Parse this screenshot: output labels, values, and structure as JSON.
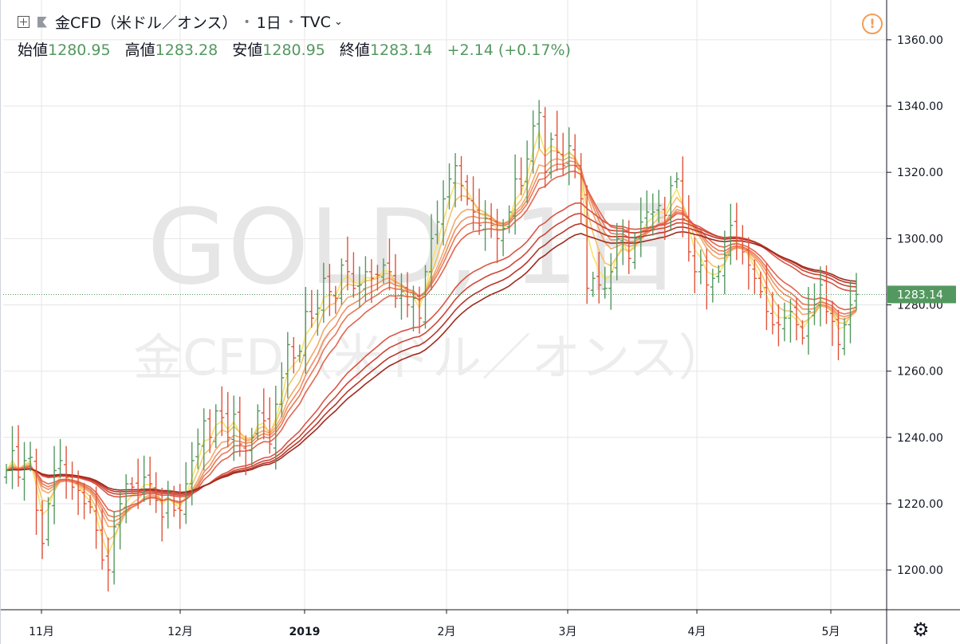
{
  "header": {
    "symbol": "金CFD（米ドル／オンス）",
    "interval": "1日",
    "exchange": "TVC",
    "open_label": "始値",
    "open": "1280.95",
    "high_label": "高値",
    "high": "1283.28",
    "low_label": "安値",
    "low": "1280.95",
    "close_label": "終値",
    "close": "1283.14",
    "change": "+2.14 (+0.17%)"
  },
  "watermark": {
    "line1": "GOLD, 1日",
    "line2": "金CFD（米ドル／オンス）"
  },
  "icons": {
    "expand": "plus-square-icon",
    "flag": "flag-icon",
    "warning": "warning-icon",
    "settings": "gear-icon"
  },
  "colors": {
    "up": "#53985f",
    "down": "#e0533a",
    "grid": "#e6e6e6",
    "price_line": "#53985f",
    "ribbon": [
      "#f7e36a",
      "#f5c36c",
      "#f2a86a",
      "#ee9062",
      "#e9785a",
      "#e36550",
      "#d95444",
      "#cc4637",
      "#b8362a",
      "#9e2a1e"
    ]
  },
  "chart_data": {
    "type": "candlestick",
    "y_ticks": [
      "1360.00",
      "1340.00",
      "1320.00",
      "1300.00",
      "1280.00",
      "1260.00",
      "1240.00",
      "1220.00",
      "1200.00"
    ],
    "ylim": [
      1188,
      1372
    ],
    "x_ticks": [
      "11月",
      "12月",
      "2019",
      "2月",
      "3月",
      "4月",
      "5月"
    ],
    "last_price_label": "1283.14",
    "last_price": 1283.14,
    "closes": [
      1230,
      1236,
      1228,
      1233,
      1234,
      1218,
      1208,
      1220,
      1230,
      1233,
      1228,
      1225,
      1224,
      1220,
      1219,
      1212,
      1203,
      1200,
      1213,
      1220,
      1226,
      1225,
      1224,
      1228,
      1226,
      1221,
      1216,
      1224,
      1218,
      1218,
      1226,
      1233,
      1238,
      1245,
      1240,
      1248,
      1246,
      1240,
      1247,
      1238,
      1236,
      1240,
      1248,
      1245,
      1238,
      1250,
      1258,
      1268,
      1264,
      1266,
      1278,
      1276,
      1279,
      1288,
      1284,
      1282,
      1292,
      1290,
      1285,
      1286,
      1290,
      1288,
      1289,
      1292,
      1290,
      1282,
      1284,
      1280,
      1282,
      1276,
      1290,
      1300,
      1305,
      1312,
      1318,
      1322,
      1316,
      1312,
      1308,
      1304,
      1306,
      1304,
      1300,
      1303,
      1308,
      1318,
      1316,
      1324,
      1334,
      1338,
      1320,
      1330,
      1326,
      1322,
      1328,
      1322,
      1312,
      1285,
      1288,
      1286,
      1285,
      1290,
      1300,
      1302,
      1294,
      1300,
      1305,
      1308,
      1308,
      1310,
      1307,
      1316,
      1318,
      1306,
      1296,
      1290,
      1292,
      1286,
      1288,
      1290,
      1295,
      1304,
      1300,
      1296,
      1292,
      1288,
      1284,
      1278,
      1274,
      1274,
      1276,
      1278,
      1274,
      1270,
      1278,
      1280,
      1286,
      1278,
      1275,
      1268,
      1274,
      1280,
      1283.14
    ],
    "ma_periods": [
      3,
      5,
      8,
      10,
      12,
      15,
      30,
      35,
      40,
      45
    ]
  }
}
